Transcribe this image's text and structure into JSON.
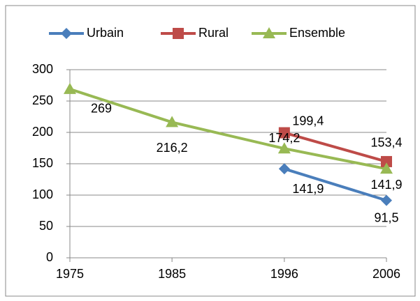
{
  "chart_data": {
    "type": "line",
    "x": [
      1975,
      1985,
      1996,
      2006
    ],
    "series": [
      {
        "name": "Urbain",
        "color": "#4a7ebb",
        "marker": "diamond",
        "values": [
          null,
          null,
          141.9,
          91.5
        ],
        "value_labels": [
          null,
          null,
          "141,9",
          "91,5"
        ]
      },
      {
        "name": "Rural",
        "color": "#be4b48",
        "marker": "square",
        "values": [
          null,
          null,
          199.4,
          153.4
        ],
        "value_labels": [
          null,
          null,
          "199,4",
          "153,4"
        ]
      },
      {
        "name": "Ensemble",
        "color": "#98b954",
        "marker": "triangle",
        "values": [
          269,
          216.2,
          174.2,
          141.9
        ],
        "value_labels": [
          "269",
          "216,2",
          "174,2",
          "141,9"
        ]
      }
    ],
    "xlim": [
      1975,
      2006
    ],
    "xticks": [
      1975,
      1985,
      1996,
      2006
    ],
    "ylim": [
      0,
      300
    ],
    "yticks": [
      0,
      50,
      100,
      150,
      200,
      250,
      300
    ],
    "grid": true,
    "legend": "top"
  }
}
